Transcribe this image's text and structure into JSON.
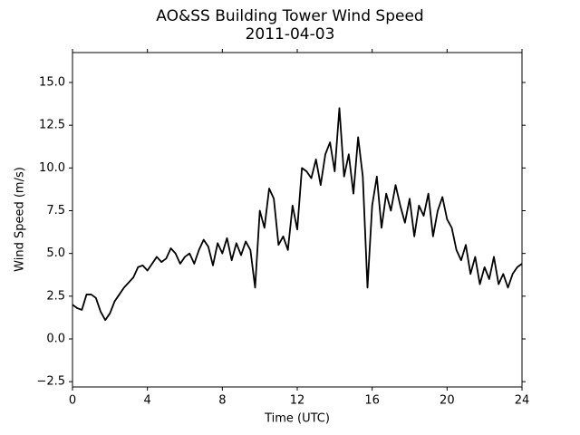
{
  "chart_data": {
    "type": "line",
    "title": "AO&SS Building Tower Wind Speed",
    "subtitle": "2011-04-03",
    "x_label": "Time (UTC)",
    "y_label": "Wind Speed (m/s)",
    "x": [
      0,
      0.25,
      0.5,
      0.75,
      1,
      1.25,
      1.5,
      1.75,
      2,
      2.25,
      2.5,
      2.75,
      3,
      3.25,
      3.5,
      3.75,
      4,
      4.25,
      4.5,
      4.75,
      5,
      5.25,
      5.5,
      5.75,
      6,
      6.25,
      6.5,
      6.75,
      7,
      7.25,
      7.5,
      7.75,
      8,
      8.25,
      8.5,
      8.75,
      9,
      9.25,
      9.5,
      9.75,
      10,
      10.25,
      10.5,
      10.75,
      11,
      11.25,
      11.5,
      11.75,
      12,
      12.25,
      12.5,
      12.75,
      13,
      13.25,
      13.5,
      13.75,
      14,
      14.25,
      14.5,
      14.75,
      15,
      15.25,
      15.5,
      15.75,
      16,
      16.25,
      16.5,
      16.75,
      17,
      17.25,
      17.5,
      17.75,
      18,
      18.25,
      18.5,
      18.75,
      19,
      19.25,
      19.5,
      19.75,
      20,
      20.25,
      20.5,
      20.75,
      21,
      21.25,
      21.5,
      21.75,
      22,
      22.25,
      22.5,
      22.75,
      23,
      23.25,
      23.5,
      23.75,
      24
    ],
    "series": [
      {
        "name": "Wind Speed",
        "color": "#000000",
        "values": [
          2.0,
          1.8,
          1.7,
          2.6,
          2.6,
          2.4,
          1.6,
          1.1,
          1.5,
          2.2,
          2.6,
          3.0,
          3.3,
          3.6,
          4.2,
          4.3,
          4.0,
          4.4,
          4.8,
          4.5,
          4.7,
          5.3,
          5.0,
          4.4,
          4.8,
          5.0,
          4.4,
          5.2,
          5.8,
          5.4,
          4.3,
          5.6,
          5.0,
          5.9,
          4.6,
          5.6,
          4.9,
          5.7,
          5.2,
          3.0,
          7.5,
          6.5,
          8.8,
          8.2,
          5.5,
          6.0,
          5.2,
          7.8,
          6.4,
          10.0,
          9.8,
          9.4,
          10.5,
          9.0,
          10.8,
          11.5,
          9.8,
          13.5,
          9.5,
          10.8,
          8.5,
          11.8,
          9.5,
          3.0,
          7.8,
          9.5,
          6.5,
          8.5,
          7.5,
          9.0,
          7.8,
          6.8,
          8.2,
          6.0,
          7.8,
          7.2,
          8.5,
          6.0,
          7.5,
          8.3,
          7.0,
          6.5,
          5.2,
          4.6,
          5.5,
          3.8,
          4.8,
          3.2,
          4.2,
          3.5,
          4.8,
          3.2,
          3.8,
          3.0,
          3.8,
          4.2,
          4.4
        ]
      }
    ],
    "xlim": [
      0,
      24
    ],
    "xticks": [
      0,
      4,
      8,
      12,
      16,
      20,
      24
    ],
    "ylim": [
      -2.81,
      16.75
    ],
    "yticks": [
      {
        "value": -2.5,
        "label": "−2.5"
      },
      {
        "value": 0,
        "label": "0.0"
      },
      2.5,
      {
        "value": 5,
        "label": "5.0"
      },
      7.5,
      {
        "value": 10,
        "label": "10.0"
      },
      12.5,
      {
        "value": 15,
        "label": "15.0"
      }
    ],
    "grid": false
  }
}
